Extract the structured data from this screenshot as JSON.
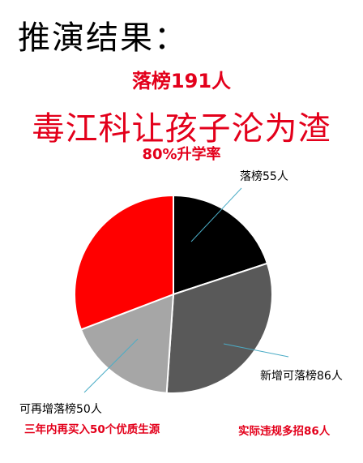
{
  "header": {
    "title": "推演结果：",
    "fail_count": "落榜191人",
    "slogan": "毒江科让孩子沦为渣",
    "rate": "80%升学率"
  },
  "notes": {
    "left": "三年内再买入50个优质生源",
    "right": "实际违规多招86人"
  },
  "chart_data": {
    "type": "pie",
    "title": "",
    "slices": [
      {
        "label": "落榜55人",
        "value": 55,
        "color": "#000000"
      },
      {
        "label": "新增可落榜86人",
        "value": 86,
        "color": "#595959"
      },
      {
        "label": "可再增落榜50人",
        "value": 50,
        "color": "#a6a6a6"
      },
      {
        "label": "",
        "value": 85,
        "color": "#ff0000"
      }
    ]
  }
}
